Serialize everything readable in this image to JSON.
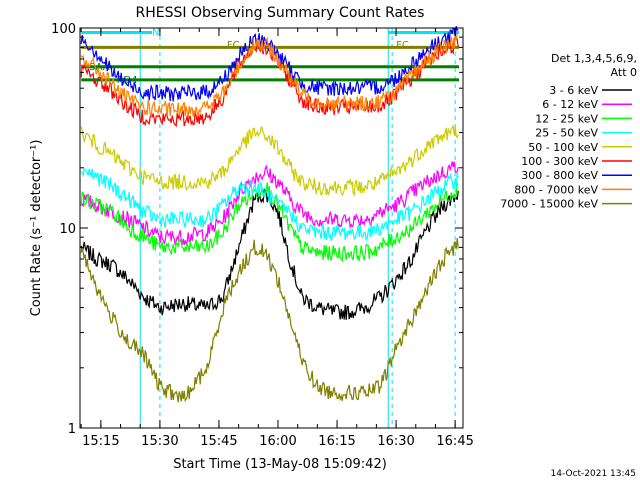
{
  "chart_data": {
    "type": "line",
    "title": "RHESSI Observing Summary Count Rates",
    "xlabel": "Start Time (13-May-08 15:09:42)",
    "ylabel": "Count Rate (s⁻¹ detector⁻¹)",
    "x_start": "15:09:42",
    "x_end": "16:47:00",
    "xticks": [
      "15:15",
      "15:30",
      "15:45",
      "16:00",
      "16:15",
      "16:30",
      "16:45"
    ],
    "yscale": "log",
    "ylim": [
      1,
      100
    ],
    "yticks": [
      "1",
      "10",
      "100"
    ],
    "legend_title": [
      "Det 1,3,4,5,6,9,",
      "Att 0"
    ],
    "legend_position": "right",
    "footer": "14-Oct-2021 13:45",
    "annotations": [
      "N",
      "FC",
      "FC",
      "SAA",
      "RD4"
    ],
    "vertical_markers": {
      "solid": [
        "15:25",
        "16:28"
      ],
      "dashed": [
        "15:30",
        "16:29",
        "16:45"
      ]
    },
    "bars": [
      {
        "label": "N",
        "color": "#00e5ee",
        "y": 95,
        "segments": [
          [
            "15:10",
            "15:28"
          ],
          [
            "16:28",
            "16:46"
          ]
        ]
      },
      {
        "label": "FC",
        "color": "#808000",
        "y": 80,
        "segments": [
          [
            "15:10",
            "16:46"
          ]
        ]
      },
      {
        "label": "SAA",
        "color": "#008000",
        "y": 64,
        "segments": [
          [
            "15:10",
            "16:46"
          ]
        ]
      },
      {
        "label": "RD4",
        "color": "#008000",
        "y": 55,
        "segments": [
          [
            "15:10",
            "16:46"
          ]
        ]
      }
    ],
    "series": [
      {
        "name": "3 - 6 keV",
        "color": "#000000",
        "points": [
          [
            "15:10",
            8
          ],
          [
            "15:14",
            7
          ],
          [
            "15:18",
            6.5
          ],
          [
            "15:22",
            5.5
          ],
          [
            "15:26",
            4.5
          ],
          [
            "15:30",
            4
          ],
          [
            "15:36",
            4.2
          ],
          [
            "15:42",
            4
          ],
          [
            "15:46",
            4.5
          ],
          [
            "15:50",
            8
          ],
          [
            "15:54",
            14
          ],
          [
            "15:57",
            15
          ],
          [
            "16:00",
            12
          ],
          [
            "16:03",
            7
          ],
          [
            "16:06",
            4.5
          ],
          [
            "16:10",
            4
          ],
          [
            "16:14",
            3.8
          ],
          [
            "16:18",
            3.8
          ],
          [
            "16:22",
            4
          ],
          [
            "16:26",
            4.5
          ],
          [
            "16:30",
            5.5
          ],
          [
            "16:34",
            7
          ],
          [
            "16:38",
            10
          ],
          [
            "16:42",
            13
          ],
          [
            "16:46",
            15
          ]
        ]
      },
      {
        "name": "6 - 12 keV",
        "color": "#ff00ff",
        "points": [
          [
            "15:10",
            14
          ],
          [
            "15:14",
            13
          ],
          [
            "15:18",
            12
          ],
          [
            "15:22",
            11
          ],
          [
            "15:26",
            10
          ],
          [
            "15:30",
            9
          ],
          [
            "15:36",
            9
          ],
          [
            "15:42",
            9.5
          ],
          [
            "15:46",
            11
          ],
          [
            "15:50",
            15
          ],
          [
            "15:54",
            18
          ],
          [
            "15:57",
            19
          ],
          [
            "16:00",
            17
          ],
          [
            "16:03",
            14
          ],
          [
            "16:06",
            12
          ],
          [
            "16:10",
            11
          ],
          [
            "16:14",
            11
          ],
          [
            "16:18",
            11
          ],
          [
            "16:22",
            11
          ],
          [
            "16:26",
            12
          ],
          [
            "16:30",
            13
          ],
          [
            "16:34",
            15
          ],
          [
            "16:38",
            17
          ],
          [
            "16:42",
            19
          ],
          [
            "16:46",
            21
          ]
        ]
      },
      {
        "name": "12 - 25 keV",
        "color": "#00ff00",
        "points": [
          [
            "15:10",
            14
          ],
          [
            "15:14",
            13
          ],
          [
            "15:18",
            12
          ],
          [
            "15:22",
            10
          ],
          [
            "15:26",
            9
          ],
          [
            "15:30",
            8
          ],
          [
            "15:36",
            8
          ],
          [
            "15:42",
            8
          ],
          [
            "15:46",
            9.5
          ],
          [
            "15:50",
            13
          ],
          [
            "15:54",
            15
          ],
          [
            "15:57",
            16
          ],
          [
            "16:00",
            13
          ],
          [
            "16:03",
            10
          ],
          [
            "16:06",
            8
          ],
          [
            "16:10",
            7.5
          ],
          [
            "16:14",
            7.5
          ],
          [
            "16:18",
            7.5
          ],
          [
            "16:22",
            7.5
          ],
          [
            "16:26",
            8
          ],
          [
            "16:30",
            9
          ],
          [
            "16:34",
            10
          ],
          [
            "16:38",
            12
          ],
          [
            "16:42",
            14
          ],
          [
            "16:46",
            16
          ]
        ]
      },
      {
        "name": "25 - 50 keV",
        "color": "#00ffff",
        "points": [
          [
            "15:10",
            20
          ],
          [
            "15:14",
            18
          ],
          [
            "15:18",
            16
          ],
          [
            "15:22",
            14
          ],
          [
            "15:26",
            12
          ],
          [
            "15:30",
            11
          ],
          [
            "15:36",
            11
          ],
          [
            "15:42",
            11
          ],
          [
            "15:46",
            13
          ],
          [
            "15:50",
            16
          ],
          [
            "15:54",
            16
          ],
          [
            "15:57",
            15
          ],
          [
            "16:00",
            13
          ],
          [
            "16:03",
            12
          ],
          [
            "16:06",
            10
          ],
          [
            "16:10",
            9.5
          ],
          [
            "16:14",
            9.5
          ],
          [
            "16:18",
            9.5
          ],
          [
            "16:22",
            9.5
          ],
          [
            "16:26",
            10
          ],
          [
            "16:30",
            11
          ],
          [
            "16:34",
            12
          ],
          [
            "16:38",
            14
          ],
          [
            "16:42",
            16
          ],
          [
            "16:46",
            18
          ]
        ]
      },
      {
        "name": "50 - 100 keV",
        "color": "#cccc00",
        "points": [
          [
            "15:10",
            30
          ],
          [
            "15:14",
            26
          ],
          [
            "15:18",
            23
          ],
          [
            "15:22",
            20
          ],
          [
            "15:26",
            18
          ],
          [
            "15:30",
            17
          ],
          [
            "15:36",
            17
          ],
          [
            "15:42",
            17
          ],
          [
            "15:46",
            19
          ],
          [
            "15:50",
            25
          ],
          [
            "15:54",
            30
          ],
          [
            "15:57",
            29
          ],
          [
            "16:00",
            25
          ],
          [
            "16:03",
            20
          ],
          [
            "16:06",
            17
          ],
          [
            "16:10",
            16
          ],
          [
            "16:14",
            16
          ],
          [
            "16:18",
            16
          ],
          [
            "16:22",
            16
          ],
          [
            "16:26",
            17
          ],
          [
            "16:30",
            19
          ],
          [
            "16:34",
            22
          ],
          [
            "16:38",
            26
          ],
          [
            "16:42",
            29
          ],
          [
            "16:46",
            31
          ]
        ]
      },
      {
        "name": "100 - 300 keV",
        "color": "#ff0000",
        "points": [
          [
            "15:10",
            62
          ],
          [
            "15:14",
            55
          ],
          [
            "15:18",
            48
          ],
          [
            "15:22",
            40
          ],
          [
            "15:26",
            36
          ],
          [
            "15:30",
            35
          ],
          [
            "15:36",
            35
          ],
          [
            "15:42",
            36
          ],
          [
            "15:46",
            45
          ],
          [
            "15:50",
            65
          ],
          [
            "15:54",
            82
          ],
          [
            "15:57",
            80
          ],
          [
            "16:00",
            68
          ],
          [
            "16:03",
            55
          ],
          [
            "16:06",
            44
          ],
          [
            "16:10",
            40
          ],
          [
            "16:14",
            40
          ],
          [
            "16:18",
            40
          ],
          [
            "16:22",
            40
          ],
          [
            "16:26",
            41
          ],
          [
            "16:30",
            46
          ],
          [
            "16:34",
            56
          ],
          [
            "16:38",
            68
          ],
          [
            "16:42",
            78
          ],
          [
            "16:46",
            85
          ]
        ]
      },
      {
        "name": "300 - 800 keV",
        "color": "#0000ff",
        "points": [
          [
            "15:10",
            90
          ],
          [
            "15:14",
            75
          ],
          [
            "15:18",
            60
          ],
          [
            "15:22",
            52
          ],
          [
            "15:26",
            48
          ],
          [
            "15:30",
            47
          ],
          [
            "15:36",
            47
          ],
          [
            "15:42",
            48
          ],
          [
            "15:46",
            55
          ],
          [
            "15:50",
            72
          ],
          [
            "15:54",
            88
          ],
          [
            "15:57",
            86
          ],
          [
            "16:00",
            74
          ],
          [
            "16:03",
            62
          ],
          [
            "16:06",
            53
          ],
          [
            "16:10",
            50
          ],
          [
            "16:14",
            50
          ],
          [
            "16:18",
            50
          ],
          [
            "16:22",
            50
          ],
          [
            "16:26",
            51
          ],
          [
            "16:30",
            56
          ],
          [
            "16:34",
            66
          ],
          [
            "16:38",
            78
          ],
          [
            "16:42",
            88
          ],
          [
            "16:46",
            95
          ]
        ]
      },
      {
        "name": "800 - 7000 keV",
        "color": "#ff8000",
        "points": [
          [
            "15:10",
            72
          ],
          [
            "15:14",
            62
          ],
          [
            "15:18",
            52
          ],
          [
            "15:22",
            44
          ],
          [
            "15:26",
            40
          ],
          [
            "15:30",
            39
          ],
          [
            "15:36",
            39
          ],
          [
            "15:42",
            40
          ],
          [
            "15:46",
            47
          ],
          [
            "15:50",
            64
          ],
          [
            "15:54",
            84
          ],
          [
            "15:57",
            82
          ],
          [
            "16:00",
            70
          ],
          [
            "16:03",
            57
          ],
          [
            "16:06",
            47
          ],
          [
            "16:10",
            43
          ],
          [
            "16:14",
            42
          ],
          [
            "16:18",
            42
          ],
          [
            "16:22",
            42
          ],
          [
            "16:26",
            43
          ],
          [
            "16:30",
            48
          ],
          [
            "16:34",
            58
          ],
          [
            "16:38",
            70
          ],
          [
            "16:42",
            80
          ],
          [
            "16:46",
            88
          ]
        ]
      },
      {
        "name": "7000 - 15000 keV",
        "color": "#808000",
        "points": [
          [
            "15:10",
            8
          ],
          [
            "15:14",
            5
          ],
          [
            "15:18",
            3.5
          ],
          [
            "15:22",
            2.7
          ],
          [
            "15:26",
            2.3
          ],
          [
            "15:30",
            1.6
          ],
          [
            "15:36",
            1.4
          ],
          [
            "15:42",
            2
          ],
          [
            "15:46",
            4
          ],
          [
            "15:50",
            6
          ],
          [
            "15:54",
            8
          ],
          [
            "15:57",
            7.5
          ],
          [
            "16:00",
            5.5
          ],
          [
            "16:03",
            3.5
          ],
          [
            "16:06",
            2.2
          ],
          [
            "16:10",
            1.6
          ],
          [
            "16:14",
            1.5
          ],
          [
            "16:18",
            1.5
          ],
          [
            "16:22",
            1.5
          ],
          [
            "16:26",
            1.6
          ],
          [
            "16:30",
            2.5
          ],
          [
            "16:34",
            3.5
          ],
          [
            "16:38",
            5
          ],
          [
            "16:42",
            7
          ],
          [
            "16:46",
            8.5
          ]
        ]
      }
    ]
  }
}
